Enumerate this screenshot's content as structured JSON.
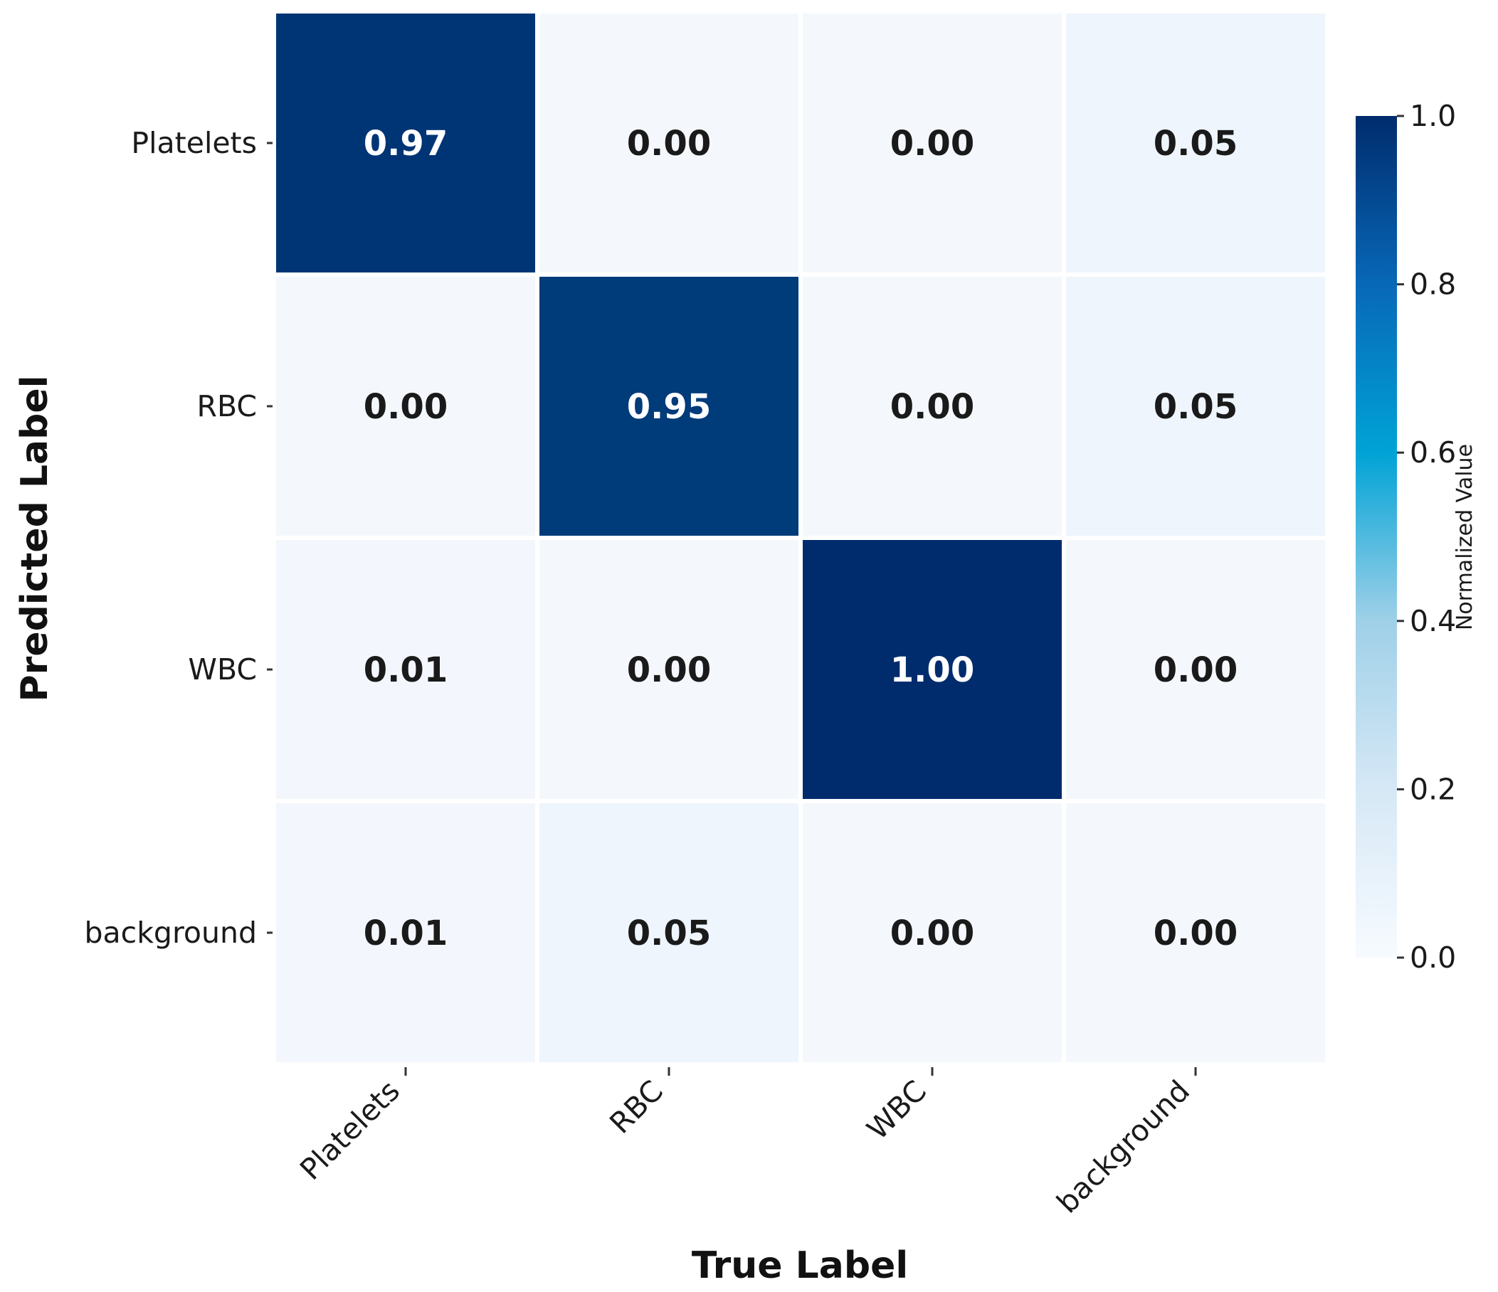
{
  "chart_data": {
    "type": "heatmap",
    "x_categories": [
      "Platelets",
      "RBC",
      "WBC",
      "background"
    ],
    "y_categories": [
      "Platelets",
      "RBC",
      "WBC",
      "background"
    ],
    "values": [
      [
        0.97,
        0.0,
        0.0,
        0.05
      ],
      [
        0.0,
        0.95,
        0.0,
        0.05
      ],
      [
        0.01,
        0.0,
        1.0,
        0.0
      ],
      [
        0.01,
        0.05,
        0.0,
        0.0
      ]
    ],
    "value_labels": [
      [
        "0.97",
        "0.00",
        "0.00",
        "0.05"
      ],
      [
        "0.00",
        "0.95",
        "0.00",
        "0.05"
      ],
      [
        "0.01",
        "0.00",
        "1.00",
        "0.00"
      ],
      [
        "0.01",
        "0.05",
        "0.00",
        "0.00"
      ]
    ],
    "xlabel": "True Label",
    "ylabel": "Predicted Label",
    "colorbar": {
      "label": "Normalized Value",
      "range": [
        0.0,
        1.0
      ],
      "ticks": [
        "0.0",
        "0.2",
        "0.4",
        "0.6",
        "0.8",
        "1.0"
      ],
      "colormap": "Blues"
    },
    "grid": false,
    "colors": {
      "low": "#f4f8fd",
      "mid": "#00a3d6",
      "high": "#002c6d",
      "text_dark": "#1a1a1a",
      "text_light": "#ffffff"
    }
  }
}
